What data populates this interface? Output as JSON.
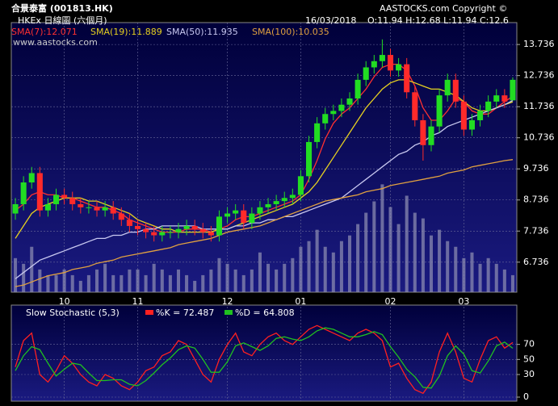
{
  "chart_data": [
    {
      "type": "candlestick",
      "title": "合景泰富 (001813.HK)",
      "subtitle": "HKEx 日線圖 (六個月)",
      "copyright": "AASTOCKS.com Copyright ©",
      "date": "16/03/2018",
      "quote": "O:11.94 H:12.68 L:11.94 C:12.6",
      "watermark": "www.aastocks.com",
      "categories": [
        null,
        null,
        null,
        null,
        null,
        null,
        "10",
        null,
        null,
        null,
        null,
        null,
        null,
        null,
        null,
        "11",
        null,
        null,
        null,
        null,
        null,
        null,
        null,
        null,
        null,
        null,
        "12",
        null,
        null,
        null,
        null,
        null,
        null,
        null,
        null,
        "01",
        null,
        null,
        null,
        null,
        null,
        null,
        null,
        null,
        null,
        null,
        "02",
        null,
        null,
        null,
        null,
        null,
        null,
        null,
        null,
        "03",
        null,
        null,
        null,
        null,
        null,
        null
      ],
      "ohlc": {
        "open": [
          8.3,
          8.6,
          9.3,
          9.6,
          8.4,
          8.6,
          8.9,
          8.8,
          8.6,
          8.5,
          8.5,
          8.4,
          8.5,
          8.3,
          8.1,
          7.9,
          7.8,
          7.7,
          7.6,
          7.7,
          7.7,
          7.8,
          7.9,
          7.8,
          7.7,
          7.6,
          8.2,
          8.3,
          8.4,
          8.0,
          8.3,
          8.5,
          8.6,
          8.7,
          8.8,
          8.9,
          9.5,
          10.6,
          11.2,
          11.5,
          11.6,
          11.8,
          12.0,
          12.6,
          13.0,
          13.2,
          13.4,
          12.9,
          13.1,
          12.2,
          11.3,
          10.5,
          11.1,
          12.1,
          12.6,
          11.9,
          11.0,
          11.3,
          11.6,
          11.9,
          12.1,
          11.94
        ],
        "high": [
          8.8,
          9.5,
          9.8,
          9.8,
          8.8,
          9.1,
          9.1,
          9.0,
          8.8,
          8.7,
          8.7,
          8.7,
          8.7,
          8.5,
          8.3,
          8.1,
          8.0,
          7.9,
          7.9,
          7.9,
          8.0,
          8.1,
          8.1,
          8.0,
          7.9,
          8.4,
          8.5,
          8.6,
          8.6,
          8.5,
          8.7,
          8.8,
          8.9,
          9.0,
          9.1,
          9.7,
          10.8,
          11.4,
          11.7,
          11.8,
          12.0,
          12.2,
          12.8,
          13.2,
          13.4,
          13.9,
          13.6,
          13.3,
          13.3,
          12.4,
          11.5,
          11.3,
          12.3,
          12.8,
          12.8,
          12.1,
          11.5,
          11.8,
          12.1,
          12.3,
          12.3,
          12.68
        ],
        "low": [
          8.1,
          8.4,
          9.1,
          8.2,
          8.2,
          8.4,
          8.6,
          8.4,
          8.3,
          8.3,
          8.2,
          8.2,
          8.1,
          7.9,
          7.7,
          7.6,
          7.5,
          7.4,
          7.4,
          7.5,
          7.5,
          7.6,
          7.6,
          7.5,
          7.4,
          7.4,
          8.0,
          8.1,
          7.8,
          7.8,
          8.1,
          8.3,
          8.4,
          8.5,
          8.6,
          8.7,
          9.3,
          10.4,
          11.0,
          11.3,
          11.4,
          11.6,
          11.8,
          12.4,
          12.8,
          13.0,
          12.7,
          12.7,
          12.0,
          11.1,
          10.0,
          10.3,
          10.9,
          11.9,
          11.7,
          10.8,
          10.8,
          11.1,
          11.4,
          11.7,
          11.7,
          11.94
        ],
        "close": [
          8.6,
          9.3,
          9.6,
          8.4,
          8.6,
          8.9,
          8.8,
          8.6,
          8.5,
          8.5,
          8.4,
          8.5,
          8.3,
          8.1,
          7.9,
          7.8,
          7.7,
          7.6,
          7.7,
          7.7,
          7.8,
          7.9,
          7.8,
          7.7,
          7.6,
          8.2,
          8.3,
          8.4,
          8.0,
          8.3,
          8.5,
          8.6,
          8.7,
          8.8,
          8.9,
          9.5,
          10.6,
          11.2,
          11.5,
          11.6,
          11.8,
          12.0,
          12.6,
          13.0,
          13.2,
          13.4,
          12.9,
          13.1,
          12.2,
          11.3,
          10.5,
          11.1,
          12.1,
          12.6,
          11.9,
          11.0,
          11.3,
          11.6,
          11.9,
          12.1,
          11.9,
          12.6
        ]
      },
      "up_color": "#22dd22",
      "down_color": "#ff2a2a",
      "series": [
        {
          "name": "SMA(7):12.071",
          "color": "#ff3030",
          "values": [
            8.4,
            8.6,
            8.9,
            9.0,
            8.9,
            8.9,
            8.8,
            8.8,
            8.7,
            8.6,
            8.5,
            8.5,
            8.4,
            8.3,
            8.1,
            8.0,
            7.9,
            7.8,
            7.7,
            7.7,
            7.7,
            7.8,
            7.8,
            7.8,
            7.7,
            7.8,
            7.9,
            8.1,
            8.2,
            8.2,
            8.3,
            8.4,
            8.5,
            8.6,
            8.7,
            8.9,
            9.4,
            10.0,
            10.7,
            11.2,
            11.5,
            11.7,
            12.0,
            12.3,
            12.7,
            13.0,
            13.1,
            13.1,
            12.9,
            12.4,
            11.7,
            11.3,
            11.3,
            11.6,
            12.0,
            11.9,
            11.6,
            11.5,
            11.5,
            11.7,
            11.9,
            12.071
          ]
        },
        {
          "name": "SMA(19):11.889",
          "color": "#e6d020",
          "values": [
            7.5,
            7.9,
            8.3,
            8.5,
            8.6,
            8.7,
            8.8,
            8.8,
            8.8,
            8.7,
            8.7,
            8.6,
            8.5,
            8.4,
            8.3,
            8.1,
            8.0,
            7.9,
            7.8,
            7.8,
            7.7,
            7.7,
            7.7,
            7.7,
            7.7,
            7.8,
            7.8,
            7.9,
            8.0,
            8.1,
            8.2,
            8.3,
            8.4,
            8.5,
            8.6,
            8.8,
            9.0,
            9.3,
            9.7,
            10.1,
            10.5,
            10.9,
            11.3,
            11.7,
            12.0,
            12.3,
            12.5,
            12.6,
            12.6,
            12.5,
            12.4,
            12.3,
            12.3,
            12.2,
            12.1,
            11.9,
            11.7,
            11.6,
            11.6,
            11.7,
            11.8,
            11.889
          ]
        },
        {
          "name": "SMA(50):11.935",
          "color": "#c8c8f0",
          "values": [
            6.2,
            6.4,
            6.6,
            6.8,
            6.9,
            7.0,
            7.1,
            7.2,
            7.3,
            7.4,
            7.5,
            7.5,
            7.6,
            7.6,
            7.7,
            7.7,
            7.8,
            7.8,
            7.9,
            7.9,
            7.9,
            7.9,
            7.9,
            7.8,
            7.8,
            7.8,
            7.8,
            7.9,
            7.9,
            8.0,
            8.0,
            8.1,
            8.1,
            8.2,
            8.2,
            8.3,
            8.4,
            8.5,
            8.6,
            8.7,
            8.8,
            9.0,
            9.2,
            9.4,
            9.6,
            9.8,
            10.0,
            10.2,
            10.3,
            10.5,
            10.6,
            10.8,
            10.9,
            11.1,
            11.2,
            11.3,
            11.4,
            11.5,
            11.6,
            11.7,
            11.8,
            11.935
          ]
        },
        {
          "name": "SMA(100):10.035",
          "color": "#e0a040",
          "values": [
            5.95,
            6.0,
            6.1,
            6.2,
            6.3,
            6.35,
            6.4,
            6.5,
            6.55,
            6.6,
            6.7,
            6.75,
            6.8,
            6.9,
            6.95,
            7.0,
            7.05,
            7.1,
            7.15,
            7.2,
            7.3,
            7.35,
            7.4,
            7.45,
            7.5,
            7.6,
            7.7,
            7.75,
            7.8,
            7.85,
            7.9,
            8.0,
            8.1,
            8.2,
            8.3,
            8.4,
            8.5,
            8.6,
            8.7,
            8.75,
            8.8,
            8.85,
            8.9,
            9.0,
            9.05,
            9.1,
            9.2,
            9.25,
            9.3,
            9.35,
            9.4,
            9.45,
            9.5,
            9.6,
            9.65,
            9.7,
            9.8,
            9.85,
            9.9,
            9.95,
            10.0,
            10.035
          ]
        }
      ],
      "volume": {
        "color": "#8a8ab0",
        "values": [
          30,
          25,
          40,
          20,
          15,
          15,
          20,
          15,
          10,
          15,
          20,
          25,
          15,
          15,
          20,
          20,
          15,
          25,
          20,
          15,
          20,
          15,
          10,
          15,
          20,
          30,
          25,
          20,
          15,
          20,
          35,
          25,
          20,
          25,
          30,
          40,
          45,
          55,
          40,
          35,
          45,
          50,
          60,
          70,
          80,
          95,
          75,
          60,
          85,
          70,
          65,
          50,
          55,
          45,
          40,
          30,
          35,
          25,
          30,
          25,
          20,
          15
        ]
      },
      "ylim": [
        5.77,
        14.44
      ],
      "yticks": [
        6.736,
        7.736,
        8.736,
        9.736,
        10.736,
        11.736,
        12.736,
        13.736
      ],
      "grid": true
    },
    {
      "type": "line",
      "title": "Slow Stochastic (5,3)",
      "series": [
        {
          "name": "%K = 72.487",
          "color": "#ff2020",
          "values": [
            40,
            75,
            85,
            30,
            20,
            35,
            55,
            45,
            30,
            20,
            15,
            30,
            25,
            15,
            10,
            20,
            35,
            40,
            55,
            60,
            75,
            70,
            50,
            30,
            20,
            50,
            70,
            85,
            60,
            55,
            70,
            80,
            85,
            75,
            70,
            80,
            90,
            95,
            90,
            85,
            80,
            75,
            85,
            90,
            85,
            75,
            40,
            45,
            25,
            10,
            5,
            20,
            60,
            85,
            60,
            25,
            20,
            50,
            75,
            80,
            65,
            72.487
          ]
        },
        {
          "name": "%D = 64.808",
          "color": "#20c020",
          "values": [
            35,
            55,
            67,
            63,
            45,
            28,
            37,
            45,
            43,
            32,
            22,
            22,
            23,
            23,
            17,
            15,
            22,
            32,
            43,
            52,
            63,
            68,
            65,
            50,
            33,
            33,
            47,
            68,
            72,
            67,
            62,
            68,
            78,
            80,
            77,
            75,
            80,
            88,
            92,
            90,
            85,
            80,
            80,
            83,
            87,
            83,
            67,
            53,
            37,
            27,
            13,
            12,
            28,
            55,
            68,
            57,
            35,
            32,
            48,
            68,
            73,
            64.808
          ]
        }
      ],
      "ylim": [
        0,
        120
      ],
      "yticks": [
        0,
        30,
        50,
        70
      ],
      "grid": true
    }
  ]
}
